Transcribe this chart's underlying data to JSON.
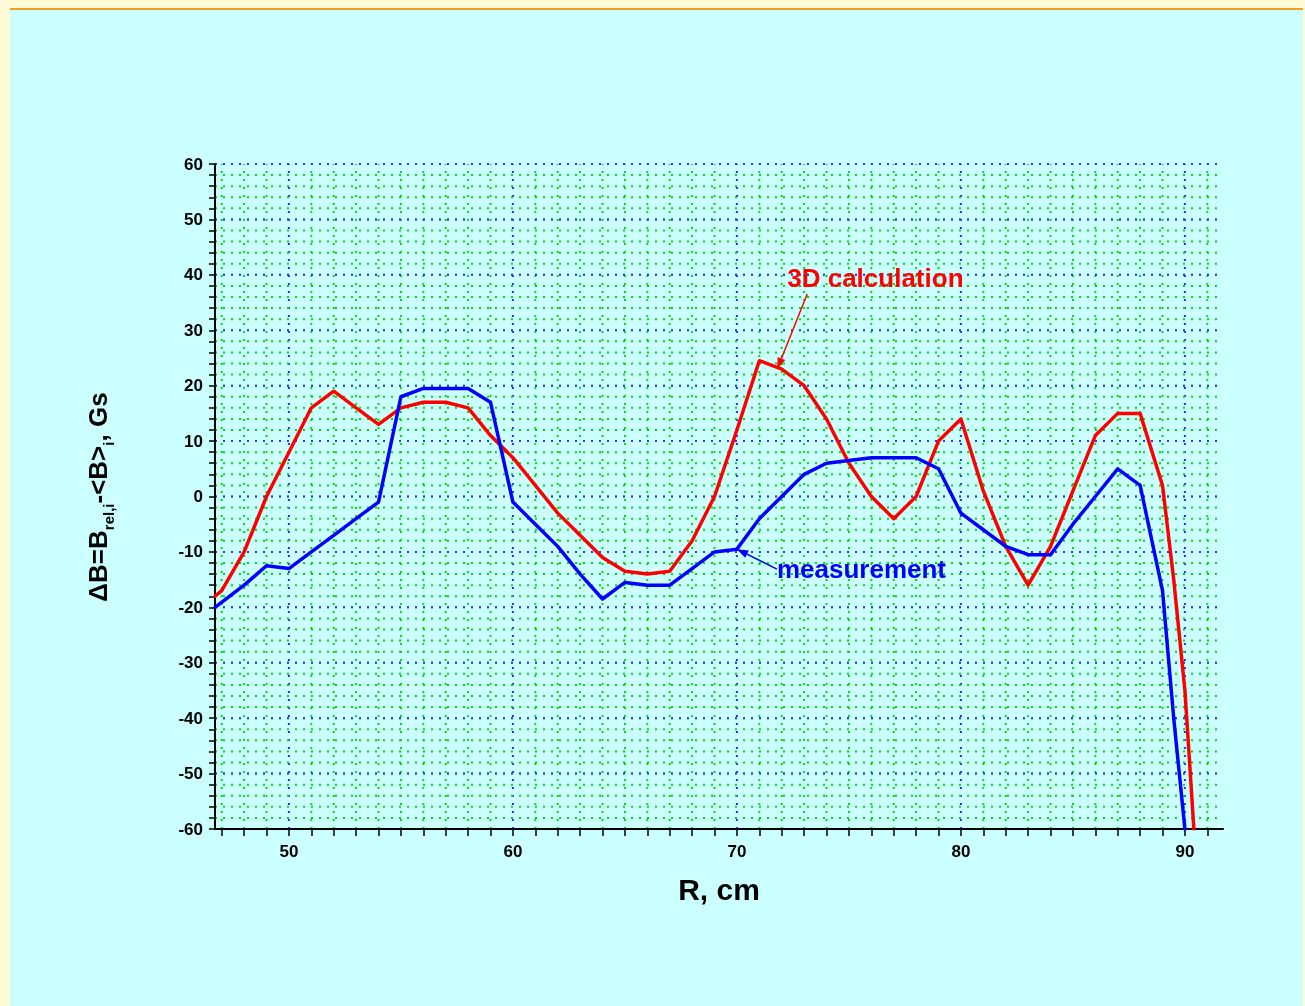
{
  "chart_data": {
    "type": "line",
    "xlabel": "R, cm",
    "ylabel": "ΔB=B$_{rel,i}$-<B>$_{i}$, Gs",
    "xlim": [
      46.7,
      91.7
    ],
    "xticks": [
      50,
      60,
      70,
      80,
      90
    ],
    "ylim": [
      -60,
      60
    ],
    "yticks": [
      -60,
      -50,
      -40,
      -30,
      -20,
      -10,
      0,
      10,
      20,
      30,
      40,
      50,
      60
    ],
    "grid": true,
    "marker": "none",
    "line_style": "solid",
    "series": [
      {
        "color": "#ff0000",
        "x": [
          46.7,
          47,
          48,
          49,
          50,
          51,
          52,
          53,
          54,
          55,
          56,
          57,
          58,
          59,
          60,
          61,
          62,
          63,
          64,
          65,
          66,
          67,
          68,
          69,
          70,
          71,
          72,
          73,
          74,
          75,
          76,
          77,
          78,
          79,
          80,
          81,
          82,
          83,
          84,
          85,
          86,
          87,
          88,
          89,
          89.5,
          90,
          90.4
        ],
        "values": [
          -18,
          -17,
          -10,
          0,
          8,
          16,
          19,
          16,
          13,
          16,
          17,
          17,
          16,
          11,
          7,
          2,
          -3,
          -7,
          -11,
          -13.5,
          -14,
          -13.5,
          -8,
          0,
          12,
          24.5,
          23,
          20,
          14,
          6,
          0,
          -4,
          0,
          10,
          14,
          1,
          -9,
          -16,
          -9,
          1,
          11,
          15,
          15,
          2,
          -15,
          -35,
          -60
        ]
      },
      {
        "color": "#0000ff",
        "x": [
          46.7,
          48,
          49,
          50,
          51,
          52,
          53,
          54,
          55,
          56,
          57,
          58,
          59,
          60,
          61,
          62,
          63,
          64,
          65,
          66,
          67,
          68,
          69,
          70,
          71,
          72,
          73,
          74,
          75,
          76,
          77,
          78,
          79,
          80,
          81,
          82,
          83,
          84,
          85,
          86,
          87,
          88,
          89,
          89.5,
          90
        ],
        "values": [
          -20,
          -16,
          -12.5,
          -13,
          -10,
          -7,
          -4,
          -1,
          18,
          19.5,
          19.5,
          19.5,
          17,
          -1,
          -5,
          -9,
          -14,
          -18.5,
          -15.5,
          -16,
          -16,
          -13,
          -10,
          -9.5,
          -4,
          0,
          4,
          6,
          6.5,
          7,
          7,
          7,
          5,
          -3,
          -6,
          -9,
          -10.5,
          -10.5,
          -5,
          0,
          5,
          2,
          -17,
          -40,
          -60
        ]
      }
    ],
    "annotations": [
      {
        "text": "3D calculation",
        "x": 71.8,
        "y": 23
      },
      {
        "text": "measurement",
        "x": 70,
        "y": -9.5
      }
    ]
  }
}
